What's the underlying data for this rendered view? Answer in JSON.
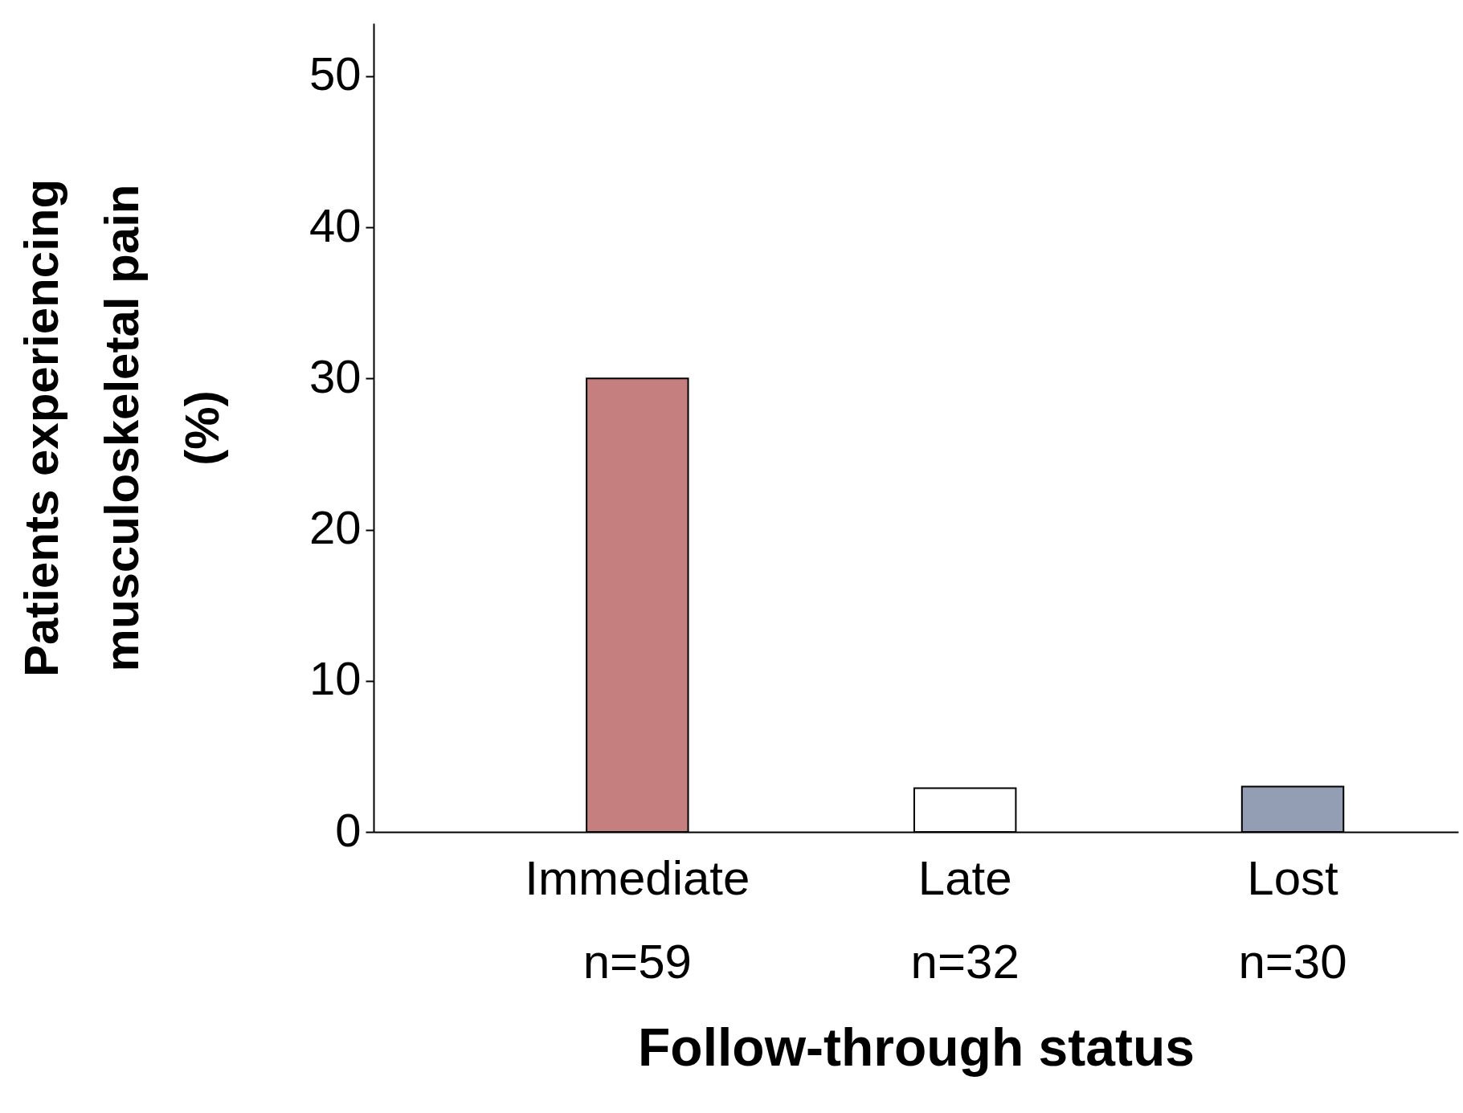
{
  "chart_data": {
    "type": "bar",
    "xlabel": "Follow-through status",
    "ylabel": "Patients experiencing\nmusculoskeletal pain\n(%)",
    "categories": [
      "Immediate\nn=59",
      "Late\nn=32",
      "Lost\nn=30"
    ],
    "values": [
      30,
      2.9,
      3.0
    ],
    "colors": [
      "#c47f7e",
      "#ffffff",
      "#939db3"
    ],
    "ylim": [
      0,
      53.5
    ],
    "yticks": [
      0,
      10,
      20,
      30,
      40,
      50
    ],
    "grid": false,
    "legend": false
  }
}
